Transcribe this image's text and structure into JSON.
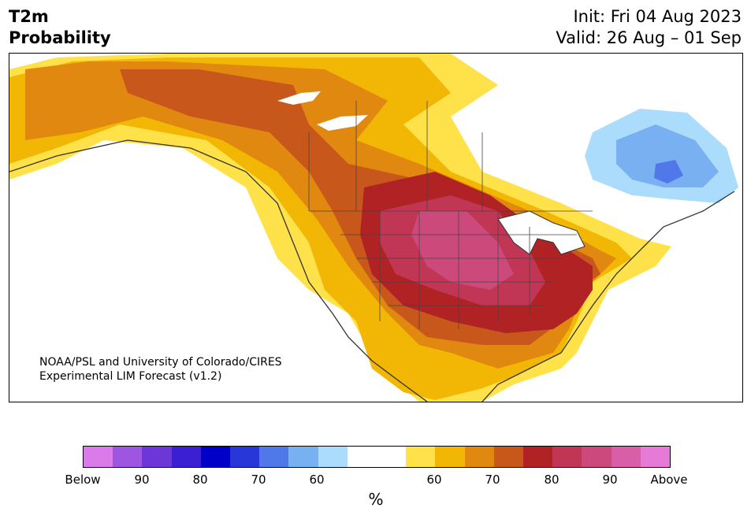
{
  "header": {
    "variable": "T2m",
    "product": "Probability",
    "init": "Init: Fri 04 Aug 2023",
    "valid": "Valid: 26 Aug – 01 Sep"
  },
  "map": {
    "credit_line1": "NOAA/PSL and University of Colorado/CIRES",
    "credit_line2": "Experimental LIM Forecast (v1.2)",
    "region": "North America"
  },
  "colorbar": {
    "colors": [
      "#d97ce9",
      "#9e55e0",
      "#6d37d8",
      "#3a1fd3",
      "#0000c9",
      "#2838d8",
      "#5078e8",
      "#78b0f2",
      "#acdcfb",
      "#ffffff",
      "#ffffff",
      "#ffe14a",
      "#f2b705",
      "#e0880f",
      "#c8571b",
      "#b02224",
      "#c23655",
      "#cc4a7b",
      "#d95ea8",
      "#e67ad7"
    ],
    "tick_labels": [
      "Below",
      "90",
      "80",
      "70",
      "60",
      "60",
      "70",
      "80",
      "90",
      "Above"
    ],
    "unit": "%"
  }
}
